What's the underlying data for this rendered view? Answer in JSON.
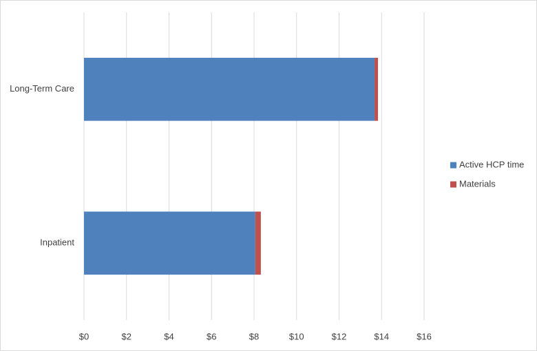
{
  "chart_data": {
    "type": "stacked-bar-horizontal",
    "categories": [
      "Long-Term Care",
      "Inpatient"
    ],
    "series": [
      {
        "name": "Active HCP time",
        "color": "#4f81bd",
        "values": [
          13.67,
          8.06
        ]
      },
      {
        "name": "Materials",
        "color": "#c0504d",
        "values": [
          0.16,
          0.26
        ]
      }
    ],
    "xlim": [
      0,
      16
    ],
    "xticks": [
      {
        "value": 0,
        "label": "$0"
      },
      {
        "value": 2,
        "label": "$2"
      },
      {
        "value": 4,
        "label": "$4"
      },
      {
        "value": 6,
        "label": "$6"
      },
      {
        "value": 8,
        "label": "$8"
      },
      {
        "value": 10,
        "label": "$10"
      },
      {
        "value": 12,
        "label": "$12"
      },
      {
        "value": 14,
        "label": "$14"
      },
      {
        "value": 16,
        "label": "$16"
      }
    ],
    "grid": true,
    "legend": "right"
  }
}
